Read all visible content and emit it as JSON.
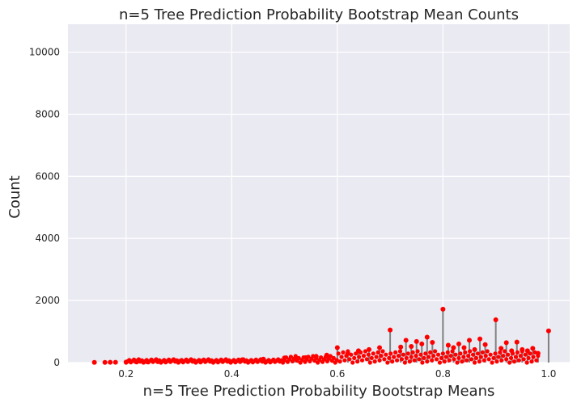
{
  "chart_data": {
    "type": "stem",
    "title": "n=5 Tree Prediction Probability Bootstrap Mean Counts",
    "xlabel": "n=5 Tree Prediction Probability Bootstrap Means",
    "ylabel": "Count",
    "xlim": [
      0.09,
      1.04
    ],
    "ylim": [
      0,
      10900
    ],
    "xticks": [
      0.2,
      0.4,
      0.6,
      0.8,
      1.0
    ],
    "xtick_labels": [
      "0.2",
      "0.4",
      "0.6",
      "0.8",
      "1.0"
    ],
    "yticks": [
      0,
      2000,
      4000,
      6000,
      8000,
      10000
    ],
    "ytick_labels": [
      "0",
      "2000",
      "4000",
      "6000",
      "8000",
      "10000"
    ],
    "grid": true,
    "marker_color": "#ff0000",
    "stem_color": "#808080",
    "background": "#eaeaf2",
    "x": [
      0.14,
      0.16,
      0.17,
      0.18,
      0.2,
      0.22,
      0.24,
      0.26,
      0.3,
      0.34,
      0.38,
      0.42,
      0.46,
      0.5,
      0.52,
      0.54,
      0.56,
      0.58,
      0.6,
      0.62,
      0.64,
      0.66,
      0.68,
      0.7,
      0.72,
      0.73,
      0.74,
      0.75,
      0.76,
      0.77,
      0.78,
      0.8,
      0.81,
      0.82,
      0.83,
      0.84,
      0.85,
      0.86,
      0.87,
      0.88,
      0.9,
      0.91,
      0.92,
      0.93,
      0.94,
      0.95,
      0.96,
      0.97,
      0.98,
      1.0
    ],
    "y": [
      5,
      5,
      10,
      10,
      15,
      20,
      25,
      30,
      40,
      55,
      70,
      90,
      110,
      150,
      130,
      160,
      200,
      240,
      480,
      300,
      380,
      420,
      480,
      1050,
      500,
      720,
      520,
      680,
      600,
      820,
      650,
      1720,
      560,
      480,
      600,
      480,
      720,
      420,
      760,
      580,
      1380,
      460,
      640,
      380,
      660,
      420,
      380,
      460,
      300,
      1020
    ]
  }
}
